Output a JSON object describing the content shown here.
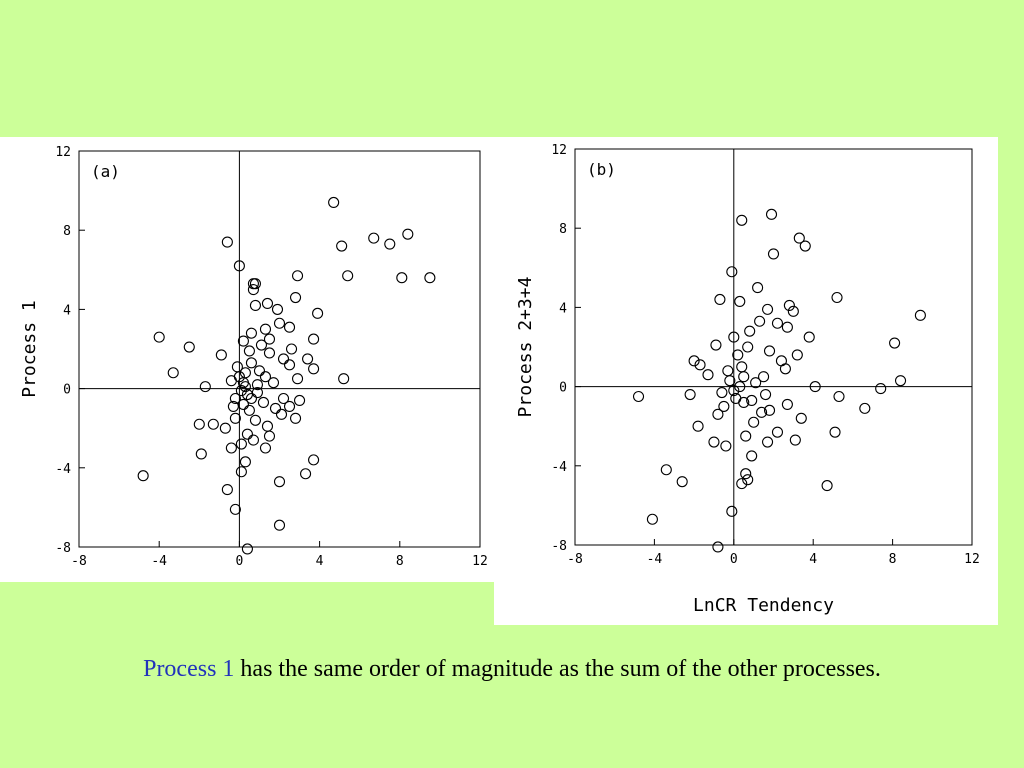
{
  "caption": {
    "highlight": "Process 1",
    "rest": " has the same order of magnitude as the sum of the other processes."
  },
  "colors": {
    "background": "#ccff99",
    "panel": "#ffffff",
    "ink": "#000000",
    "highlight": "#2233bb"
  },
  "chart_data": [
    {
      "type": "scatter",
      "panel_label": "(a)",
      "xlabel": "",
      "ylabel": "Process 1",
      "xlim": [
        -8,
        12
      ],
      "ylim": [
        -8,
        12
      ],
      "xticks": [
        "-8",
        "-4",
        "0",
        "4",
        "8",
        "12"
      ],
      "yticks": [
        "-8",
        "-4",
        "0",
        "4",
        "8",
        "12"
      ],
      "grid": false,
      "zero_lines": true,
      "points": [
        [
          4.7,
          9.4
        ],
        [
          -0.6,
          7.4
        ],
        [
          6.7,
          7.6
        ],
        [
          7.5,
          7.3
        ],
        [
          8.4,
          7.8
        ],
        [
          5.1,
          7.2
        ],
        [
          0.0,
          6.2
        ],
        [
          2.9,
          5.7
        ],
        [
          5.4,
          5.7
        ],
        [
          8.1,
          5.6
        ],
        [
          9.5,
          5.6
        ],
        [
          0.7,
          5.3
        ],
        [
          0.8,
          5.3
        ],
        [
          0.7,
          5.0
        ],
        [
          0.8,
          4.2
        ],
        [
          1.4,
          4.3
        ],
        [
          2.8,
          4.6
        ],
        [
          1.9,
          4.0
        ],
        [
          3.9,
          3.8
        ],
        [
          2.0,
          3.3
        ],
        [
          2.5,
          3.1
        ],
        [
          1.3,
          3.0
        ],
        [
          0.6,
          2.8
        ],
        [
          -4.0,
          2.6
        ],
        [
          -2.5,
          2.1
        ],
        [
          3.7,
          2.5
        ],
        [
          1.1,
          2.2
        ],
        [
          2.2,
          1.5
        ],
        [
          1.5,
          1.8
        ],
        [
          0.5,
          1.9
        ],
        [
          -0.9,
          1.7
        ],
        [
          3.4,
          1.5
        ],
        [
          2.5,
          1.2
        ],
        [
          -3.3,
          0.8
        ],
        [
          5.2,
          0.5
        ],
        [
          3.7,
          1.0
        ],
        [
          -1.7,
          0.1
        ],
        [
          2.9,
          0.5
        ],
        [
          1.3,
          0.6
        ],
        [
          0.9,
          0.2
        ],
        [
          -0.4,
          0.4
        ],
        [
          0.2,
          0.3
        ],
        [
          0.3,
          0.1
        ],
        [
          0.1,
          -0.1
        ],
        [
          0.4,
          -0.3
        ],
        [
          0.0,
          0.6
        ],
        [
          0.6,
          -0.5
        ],
        [
          0.2,
          -0.8
        ],
        [
          -0.2,
          -0.5
        ],
        [
          0.5,
          -1.1
        ],
        [
          1.2,
          -0.7
        ],
        [
          2.5,
          -0.9
        ],
        [
          2.1,
          -1.3
        ],
        [
          2.8,
          -1.5
        ],
        [
          3.0,
          -0.6
        ],
        [
          1.4,
          -1.9
        ],
        [
          0.8,
          -1.6
        ],
        [
          -0.7,
          -2.0
        ],
        [
          0.4,
          -2.3
        ],
        [
          -2.0,
          -1.8
        ],
        [
          -1.3,
          -1.8
        ],
        [
          0.1,
          -2.8
        ],
        [
          -1.9,
          -3.3
        ],
        [
          1.5,
          -2.4
        ],
        [
          1.3,
          -3.0
        ],
        [
          3.7,
          -3.6
        ],
        [
          3.3,
          -4.3
        ],
        [
          -0.4,
          -3.0
        ],
        [
          0.3,
          -3.7
        ],
        [
          0.1,
          -4.2
        ],
        [
          -4.8,
          -4.4
        ],
        [
          2.0,
          -4.7
        ],
        [
          -0.6,
          -5.1
        ],
        [
          -0.2,
          -6.1
        ],
        [
          2.0,
          -6.9
        ],
        [
          0.4,
          -8.1
        ],
        [
          1.0,
          0.9
        ],
        [
          0.6,
          1.3
        ],
        [
          -0.3,
          -0.9
        ],
        [
          0.9,
          -0.2
        ],
        [
          1.7,
          0.3
        ],
        [
          0.3,
          0.8
        ],
        [
          -0.1,
          1.1
        ],
        [
          1.5,
          2.5
        ],
        [
          2.6,
          2.0
        ],
        [
          0.2,
          2.4
        ],
        [
          2.2,
          -0.5
        ],
        [
          1.8,
          -1.0
        ],
        [
          0.7,
          -2.6
        ],
        [
          -0.2,
          -1.5
        ]
      ]
    },
    {
      "type": "scatter",
      "panel_label": "(b)",
      "xlabel": "LnCR Tendency",
      "ylabel": "Process 2+3+4",
      "xlim": [
        -8,
        12
      ],
      "ylim": [
        -8,
        12
      ],
      "xticks": [
        "-8",
        "-4",
        "0",
        "4",
        "8",
        "12"
      ],
      "yticks": [
        "-8",
        "-4",
        "0",
        "4",
        "8",
        "12"
      ],
      "grid": false,
      "zero_lines": true,
      "points": [
        [
          1.9,
          8.7
        ],
        [
          0.4,
          8.4
        ],
        [
          3.3,
          7.5
        ],
        [
          3.6,
          7.1
        ],
        [
          2.0,
          6.7
        ],
        [
          -0.1,
          5.8
        ],
        [
          1.2,
          5.0
        ],
        [
          5.2,
          4.5
        ],
        [
          9.4,
          3.6
        ],
        [
          -0.7,
          4.4
        ],
        [
          0.3,
          4.3
        ],
        [
          2.8,
          4.1
        ],
        [
          1.7,
          3.9
        ],
        [
          3.0,
          3.8
        ],
        [
          1.3,
          3.3
        ],
        [
          2.2,
          3.2
        ],
        [
          2.7,
          3.0
        ],
        [
          0.8,
          2.8
        ],
        [
          0.0,
          2.5
        ],
        [
          3.8,
          2.5
        ],
        [
          8.1,
          2.2
        ],
        [
          -0.9,
          2.1
        ],
        [
          1.8,
          1.8
        ],
        [
          3.2,
          1.6
        ],
        [
          -2.0,
          1.3
        ],
        [
          -1.7,
          1.1
        ],
        [
          -1.3,
          0.6
        ],
        [
          0.4,
          1.0
        ],
        [
          2.6,
          0.9
        ],
        [
          1.5,
          0.5
        ],
        [
          8.4,
          0.3
        ],
        [
          4.1,
          0.0
        ],
        [
          7.4,
          -0.1
        ],
        [
          -0.2,
          0.3
        ],
        [
          0.3,
          0.0
        ],
        [
          0.0,
          -0.2
        ],
        [
          -4.8,
          -0.5
        ],
        [
          -2.2,
          -0.4
        ],
        [
          5.3,
          -0.5
        ],
        [
          0.9,
          -0.7
        ],
        [
          2.7,
          -0.9
        ],
        [
          1.8,
          -1.2
        ],
        [
          6.6,
          -1.1
        ],
        [
          -0.5,
          -1.0
        ],
        [
          -0.8,
          -1.4
        ],
        [
          1.4,
          -1.3
        ],
        [
          3.4,
          -1.6
        ],
        [
          -1.8,
          -2.0
        ],
        [
          2.2,
          -2.3
        ],
        [
          5.1,
          -2.3
        ],
        [
          0.6,
          -2.5
        ],
        [
          -1.0,
          -2.8
        ],
        [
          3.1,
          -2.7
        ],
        [
          1.7,
          -2.8
        ],
        [
          -3.4,
          -4.2
        ],
        [
          -2.6,
          -4.8
        ],
        [
          0.6,
          -4.4
        ],
        [
          0.7,
          -4.7
        ],
        [
          0.4,
          -4.9
        ],
        [
          4.7,
          -5.0
        ],
        [
          -4.1,
          -6.7
        ],
        [
          -0.1,
          -6.3
        ],
        [
          -0.8,
          -8.1
        ],
        [
          0.9,
          -3.5
        ],
        [
          -0.4,
          -3.0
        ],
        [
          0.2,
          1.6
        ],
        [
          0.5,
          -0.8
        ],
        [
          1.1,
          0.2
        ],
        [
          -0.3,
          0.8
        ],
        [
          0.7,
          2.0
        ],
        [
          1.0,
          -1.8
        ],
        [
          2.4,
          1.3
        ],
        [
          0.1,
          -0.6
        ],
        [
          -0.6,
          -0.3
        ],
        [
          0.5,
          0.5
        ],
        [
          1.6,
          -0.4
        ]
      ]
    }
  ]
}
